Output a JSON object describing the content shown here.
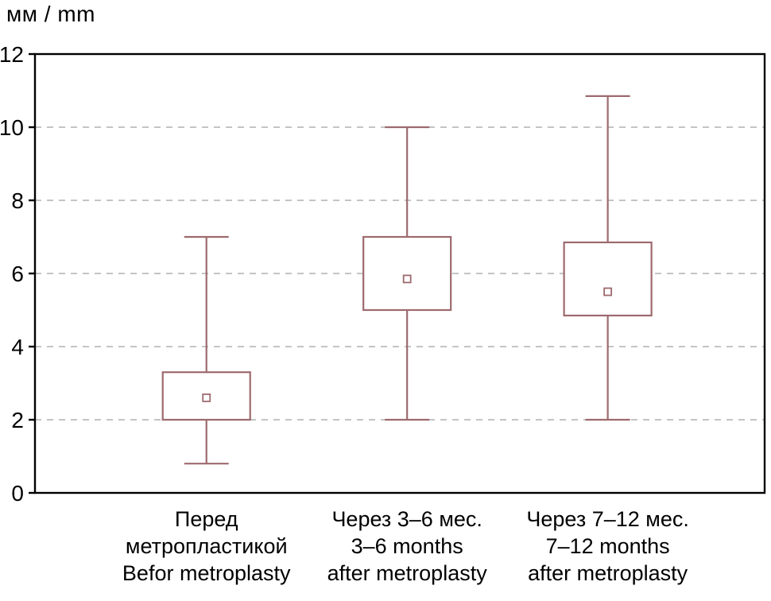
{
  "page": {
    "background": "#ffffff"
  },
  "chart_data": {
    "type": "box",
    "title": "",
    "ylabel": "мм / mm",
    "xlabel": "",
    "ylim": [
      0,
      12
    ],
    "yticks": [
      0,
      2,
      4,
      6,
      8,
      10,
      12
    ],
    "gridlines": [
      2,
      4,
      6,
      8,
      10
    ],
    "grid": "dashed-horizontal",
    "legend": "none",
    "colors": {
      "box": "#9d6a6e",
      "grid": "#b0b0b0",
      "axis": "#000000",
      "box_fill": "#ffffff",
      "marker_fill": "#ffffff"
    },
    "categories": [
      {
        "label_lines": [
          "Перед",
          "метропластикой",
          "Befor metroplasty"
        ],
        "whisker_low": 0.8,
        "q1": 2.0,
        "mean": 2.6,
        "q3": 3.3,
        "whisker_high": 7.0
      },
      {
        "label_lines": [
          "Через 3–6 мес.",
          "3–6 months",
          "after metroplasty"
        ],
        "whisker_low": 2.0,
        "q1": 5.0,
        "mean": 5.85,
        "q3": 7.0,
        "whisker_high": 10.0
      },
      {
        "label_lines": [
          "Через 7–12 мес.",
          "7–12 months",
          "after metroplasty"
        ],
        "whisker_low": 2.0,
        "q1": 4.85,
        "mean": 5.5,
        "q3": 6.85,
        "whisker_high": 10.85
      }
    ]
  }
}
